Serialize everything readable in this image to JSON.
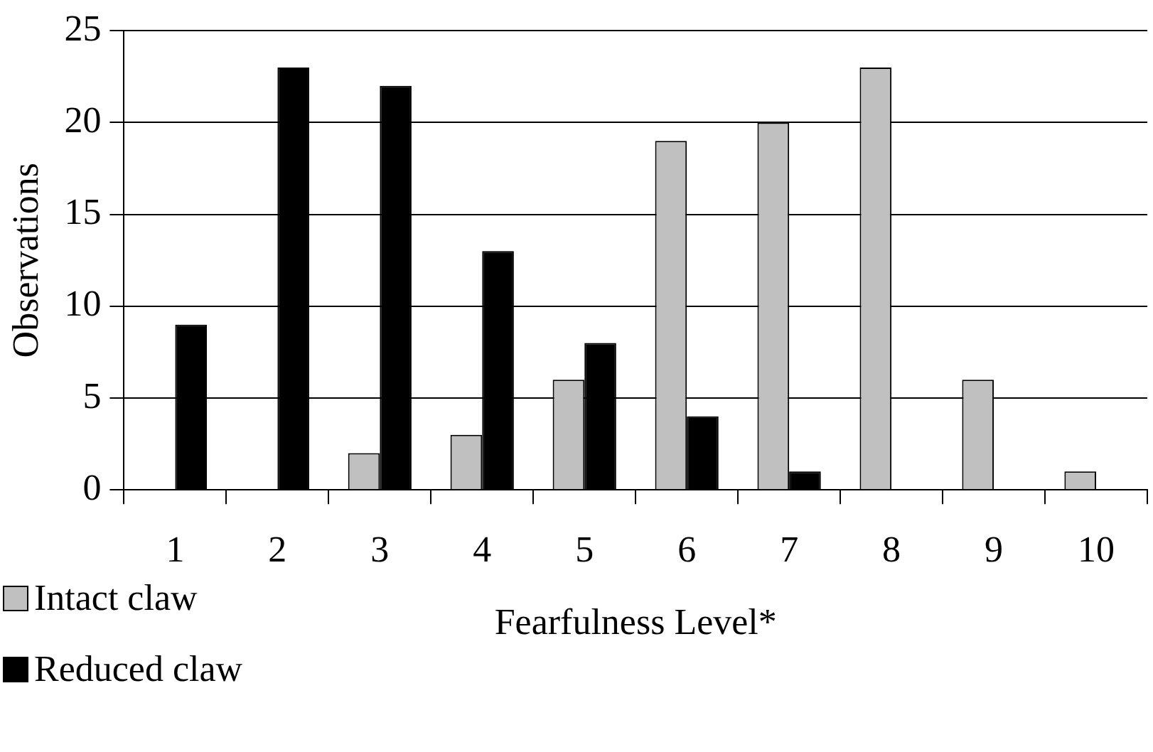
{
  "chart_data": {
    "type": "bar",
    "xlabel": "Fearfulness Level*",
    "ylabel": "Observations",
    "categories": [
      "1",
      "2",
      "3",
      "4",
      "5",
      "6",
      "7",
      "8",
      "9",
      "10"
    ],
    "series": [
      {
        "name": "Intact claw",
        "color": "#c0c0c0",
        "values": [
          0,
          0,
          2,
          3,
          6,
          19,
          20,
          23,
          6,
          1
        ]
      },
      {
        "name": "Reduced claw",
        "color": "#000000",
        "values": [
          9,
          23,
          22,
          13,
          8,
          4,
          1,
          0,
          0,
          0
        ]
      }
    ],
    "ylim": [
      0,
      25
    ],
    "yticks": [
      0,
      5,
      10,
      15,
      20,
      25
    ],
    "grid": "y",
    "legend": "bottom left"
  }
}
